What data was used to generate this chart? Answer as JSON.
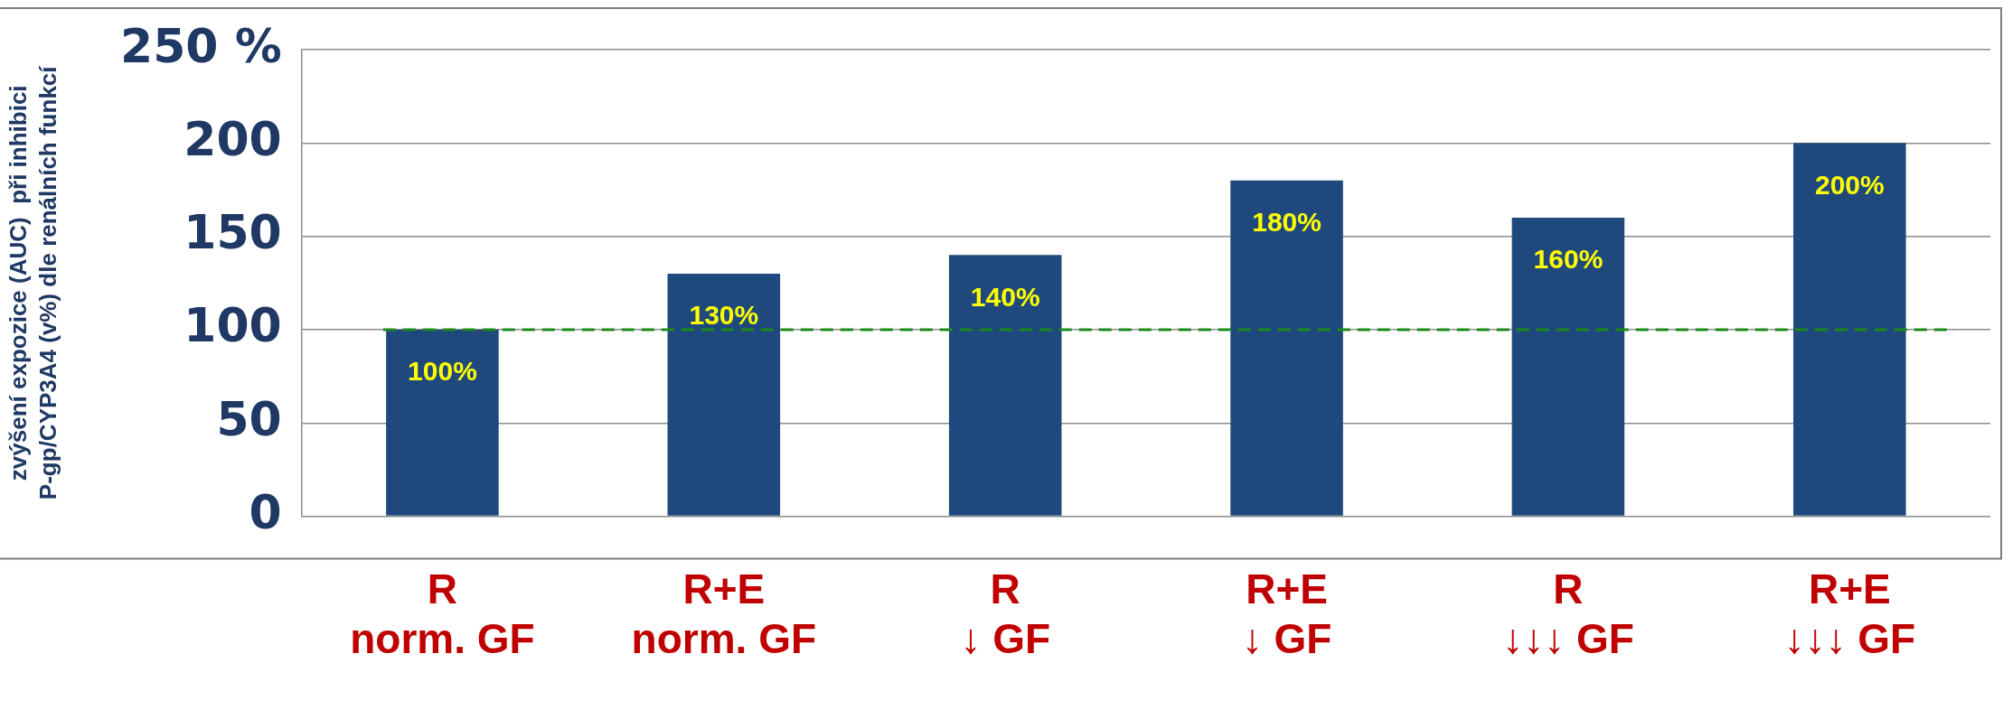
{
  "chart_data": {
    "type": "bar",
    "ylabel": "zvýšení expozice (AUC)  při inhibici\nP-gp/CYP3A4 (v%) dle renálních funkcí",
    "categories": [
      "R\nnorm. GF",
      "R+E\nnorm. GF",
      "R\n↓ GF",
      "R+E\n↓ GF",
      "R\n↓↓↓ GF",
      "R+E\n↓↓↓ GF"
    ],
    "values": [
      100,
      130,
      140,
      180,
      160,
      200
    ],
    "color": "#1f497d",
    "value_labels": [
      "100%",
      "130%",
      "140%",
      "180%",
      "160%",
      "200%"
    ],
    "ylim": [
      0,
      250
    ],
    "yticks": [
      0,
      50,
      100,
      150,
      200,
      {
        "value": 250,
        "label": "250 %"
      }
    ],
    "grid": "y",
    "legend": false,
    "ref_lines": [
      {
        "axis": "y",
        "value": 100,
        "color": "#1a8a1a",
        "line_style": "dashed"
      }
    ]
  }
}
